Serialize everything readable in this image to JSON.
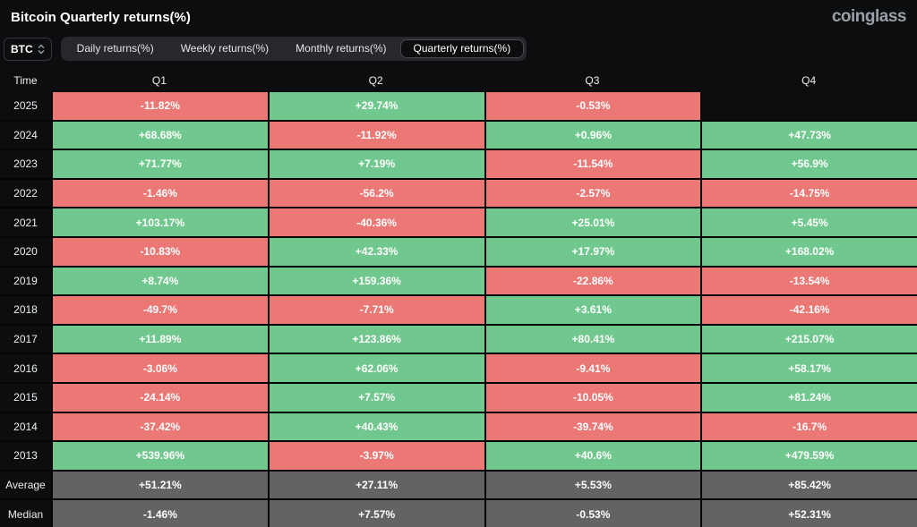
{
  "header": {
    "title": "Bitcoin Quarterly returns(%)",
    "logo": "coinglass"
  },
  "controls": {
    "symbol_select": {
      "value": "BTC"
    },
    "tabs": [
      {
        "label": "Daily returns(%)",
        "key": "daily",
        "active": false
      },
      {
        "label": "Weekly returns(%)",
        "key": "weekly",
        "active": false
      },
      {
        "label": "Monthly returns(%)",
        "key": "monthly",
        "active": false
      },
      {
        "label": "Quarterly returns(%)",
        "key": "quarterly",
        "active": true
      }
    ]
  },
  "chart_data": {
    "type": "table",
    "title": "Bitcoin Quarterly returns(%)",
    "columns": [
      "Time",
      "Q1",
      "Q2",
      "Q3",
      "Q4"
    ],
    "rows": [
      {
        "label": "2025",
        "type": "year",
        "values": [
          "-11.82%",
          "+29.74%",
          "-0.53%",
          null
        ]
      },
      {
        "label": "2024",
        "type": "year",
        "values": [
          "+68.68%",
          "-11.92%",
          "+0.96%",
          "+47.73%"
        ]
      },
      {
        "label": "2023",
        "type": "year",
        "values": [
          "+71.77%",
          "+7.19%",
          "-11.54%",
          "+56.9%"
        ]
      },
      {
        "label": "2022",
        "type": "year",
        "values": [
          "-1.46%",
          "-56.2%",
          "-2.57%",
          "-14.75%"
        ]
      },
      {
        "label": "2021",
        "type": "year",
        "values": [
          "+103.17%",
          "-40.36%",
          "+25.01%",
          "+5.45%"
        ]
      },
      {
        "label": "2020",
        "type": "year",
        "values": [
          "-10.83%",
          "+42.33%",
          "+17.97%",
          "+168.02%"
        ]
      },
      {
        "label": "2019",
        "type": "year",
        "values": [
          "+8.74%",
          "+159.36%",
          "-22.86%",
          "-13.54%"
        ]
      },
      {
        "label": "2018",
        "type": "year",
        "values": [
          "-49.7%",
          "-7.71%",
          "+3.61%",
          "-42.16%"
        ]
      },
      {
        "label": "2017",
        "type": "year",
        "values": [
          "+11.89%",
          "+123.86%",
          "+80.41%",
          "+215.07%"
        ]
      },
      {
        "label": "2016",
        "type": "year",
        "values": [
          "-3.06%",
          "+62.06%",
          "-9.41%",
          "+58.17%"
        ]
      },
      {
        "label": "2015",
        "type": "year",
        "values": [
          "-24.14%",
          "+7.57%",
          "-10.05%",
          "+81.24%"
        ]
      },
      {
        "label": "2014",
        "type": "year",
        "values": [
          "-37.42%",
          "+40.43%",
          "-39.74%",
          "-16.7%"
        ]
      },
      {
        "label": "2013",
        "type": "year",
        "values": [
          "+539.96%",
          "-3.97%",
          "+40.6%",
          "+479.59%"
        ]
      },
      {
        "label": "Average",
        "type": "stat",
        "values": [
          "+51.21%",
          "+27.11%",
          "+5.53%",
          "+85.42%"
        ]
      },
      {
        "label": "Median",
        "type": "stat",
        "values": [
          "-1.46%",
          "+7.57%",
          "-0.53%",
          "+52.31%"
        ]
      }
    ]
  },
  "colors": {
    "positive": "#71c88e",
    "negative": "#ec7876",
    "neutral": "#636363",
    "background": "#0b0d0f"
  }
}
